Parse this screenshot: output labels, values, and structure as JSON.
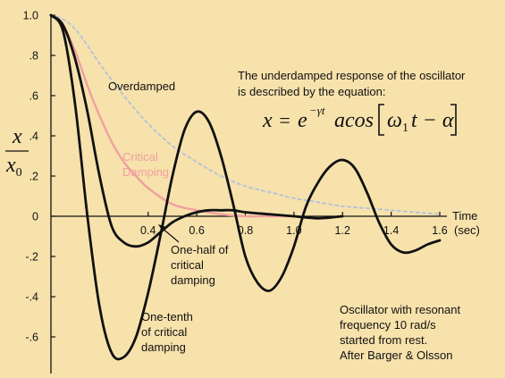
{
  "chart_data": {
    "type": "line",
    "title": "",
    "xlabel": "Time",
    "xunit": "(sec)",
    "ylabel": "x/x0",
    "xlim": [
      0,
      1.6
    ],
    "ylim": [
      -0.75,
      1.0
    ],
    "x_ticks": [
      "0.4",
      "0.6",
      "0.8",
      "1.0",
      "1.2",
      "1.4",
      "1.6"
    ],
    "y_ticks": [
      "1.0",
      ".8",
      ".6",
      ".4",
      ".2",
      "0",
      "-.2",
      "-.4",
      "-.6"
    ],
    "series": [
      {
        "name": "Overdamped",
        "color": "#b7c4d8",
        "dashed": true,
        "x": [
          0,
          0.05,
          0.1,
          0.15,
          0.2,
          0.3,
          0.4,
          0.5,
          0.6,
          0.7,
          0.8,
          0.9,
          1.0,
          1.1,
          1.2,
          1.3,
          1.4,
          1.5,
          1.6
        ],
        "values": [
          1.0,
          0.98,
          0.93,
          0.85,
          0.76,
          0.6,
          0.46,
          0.35,
          0.27,
          0.2,
          0.15,
          0.12,
          0.09,
          0.07,
          0.05,
          0.04,
          0.03,
          0.02,
          0.01
        ]
      },
      {
        "name": "Critical Damping",
        "color": "#f0a0a0",
        "dashed": false,
        "x": [
          0,
          0.05,
          0.1,
          0.15,
          0.2,
          0.25,
          0.3,
          0.35,
          0.4,
          0.5,
          0.6,
          0.7,
          0.8,
          0.9,
          1.0
        ],
        "values": [
          1.0,
          0.95,
          0.82,
          0.65,
          0.5,
          0.37,
          0.27,
          0.2,
          0.14,
          0.06,
          0.03,
          0.01,
          0.0,
          0.0,
          0.0
        ]
      },
      {
        "name": "One-half of critical damping",
        "color": "#111111",
        "dashed": false,
        "x": [
          0,
          0.05,
          0.1,
          0.15,
          0.2,
          0.25,
          0.3,
          0.35,
          0.4,
          0.45,
          0.5,
          0.55,
          0.6,
          0.65,
          0.7,
          0.75,
          0.8,
          0.9,
          1.0,
          1.1,
          1.2
        ],
        "values": [
          1.0,
          0.95,
          0.78,
          0.52,
          0.2,
          -0.05,
          -0.13,
          -0.15,
          -0.13,
          -0.08,
          -0.03,
          0.0,
          0.02,
          0.03,
          0.03,
          0.03,
          0.02,
          0.01,
          0.0,
          -0.01,
          0.0
        ]
      },
      {
        "name": "One-tenth of critical damping",
        "color": "#111111",
        "dashed": false,
        "x": [
          0,
          0.05,
          0.1,
          0.15,
          0.2,
          0.25,
          0.3,
          0.35,
          0.4,
          0.45,
          0.5,
          0.55,
          0.6,
          0.65,
          0.7,
          0.75,
          0.8,
          0.85,
          0.9,
          0.95,
          1.0,
          1.05,
          1.1,
          1.15,
          1.2,
          1.25,
          1.3,
          1.35,
          1.4,
          1.45,
          1.5,
          1.55,
          1.6
        ],
        "values": [
          1.0,
          0.92,
          0.55,
          0.0,
          -0.45,
          -0.68,
          -0.7,
          -0.6,
          -0.38,
          -0.1,
          0.2,
          0.43,
          0.52,
          0.47,
          0.3,
          0.06,
          -0.2,
          -0.33,
          -0.37,
          -0.3,
          -0.15,
          0.05,
          0.17,
          0.25,
          0.28,
          0.24,
          0.12,
          -0.03,
          -0.14,
          -0.18,
          -0.17,
          -0.14,
          -0.12
        ]
      }
    ],
    "annotations": {
      "overdamped": "Overdamped",
      "critical_line1": "Critical",
      "critical_line2": "Damping",
      "half_line1": "One-half of",
      "half_line2": "critical",
      "half_line3": "damping",
      "tenth_line1": "One-tenth",
      "tenth_line2": "of critical",
      "tenth_line3": "damping",
      "desc_line1": "The underdamped response of the oscillator",
      "desc_line2": "is described by the equation:",
      "osc_line1": "Oscillator with resonant",
      "osc_line2": "frequency 10 rad/s",
      "osc_line3": "started from rest.",
      "osc_line4": "After Barger & Olsson"
    },
    "equation": {
      "lhs": "x",
      "eq": "=",
      "base": "e",
      "exponent": "−γt",
      "coef": "a",
      "func": "cos",
      "omega": "ω",
      "sub": "1",
      "arg_rest": "t − α"
    },
    "ylabel_parts": {
      "num": "x",
      "den": "x",
      "den_sub": "0"
    },
    "background": "#f7e2ac"
  }
}
